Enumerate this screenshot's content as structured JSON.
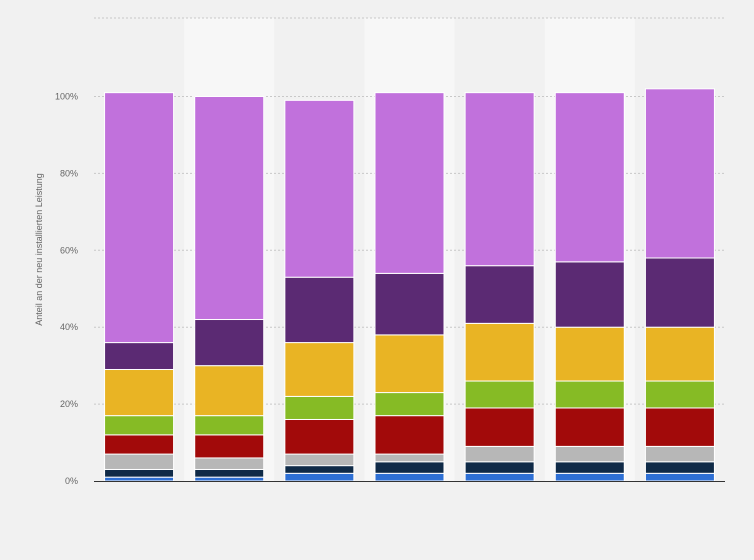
{
  "chart_data": {
    "type": "bar",
    "stacked": true,
    "categories": [
      "",
      "",
      "",
      "",
      "",
      "",
      ""
    ],
    "ylabel": "Anteil an der neu installierten Leistung",
    "ylim": [
      0,
      100
    ],
    "yticks": [
      "0%",
      "20%",
      "40%",
      "60%",
      "80%",
      "100%"
    ],
    "grid": true,
    "series": [
      {
        "color": "#2d6fd4",
        "values": [
          1,
          1,
          2,
          2,
          2,
          2,
          2
        ]
      },
      {
        "color": "#0f2a47",
        "values": [
          2,
          2,
          2,
          3,
          3,
          3,
          3
        ]
      },
      {
        "color": "#b7b7b7",
        "values": [
          4,
          3,
          3,
          2,
          4,
          4,
          4
        ]
      },
      {
        "color": "#a20a0a",
        "values": [
          5,
          6,
          9,
          10,
          10,
          10,
          10
        ]
      },
      {
        "color": "#86bb25",
        "values": [
          5,
          5,
          6,
          6,
          7,
          7,
          7
        ]
      },
      {
        "color": "#e9b424",
        "values": [
          12,
          13,
          14,
          15,
          15,
          14,
          14
        ]
      },
      {
        "color": "#5b2a73",
        "values": [
          7,
          12,
          17,
          16,
          15,
          17,
          18
        ]
      },
      {
        "color": "#c171dc",
        "values": [
          65,
          58,
          46,
          47,
          45,
          44,
          44
        ]
      }
    ]
  }
}
